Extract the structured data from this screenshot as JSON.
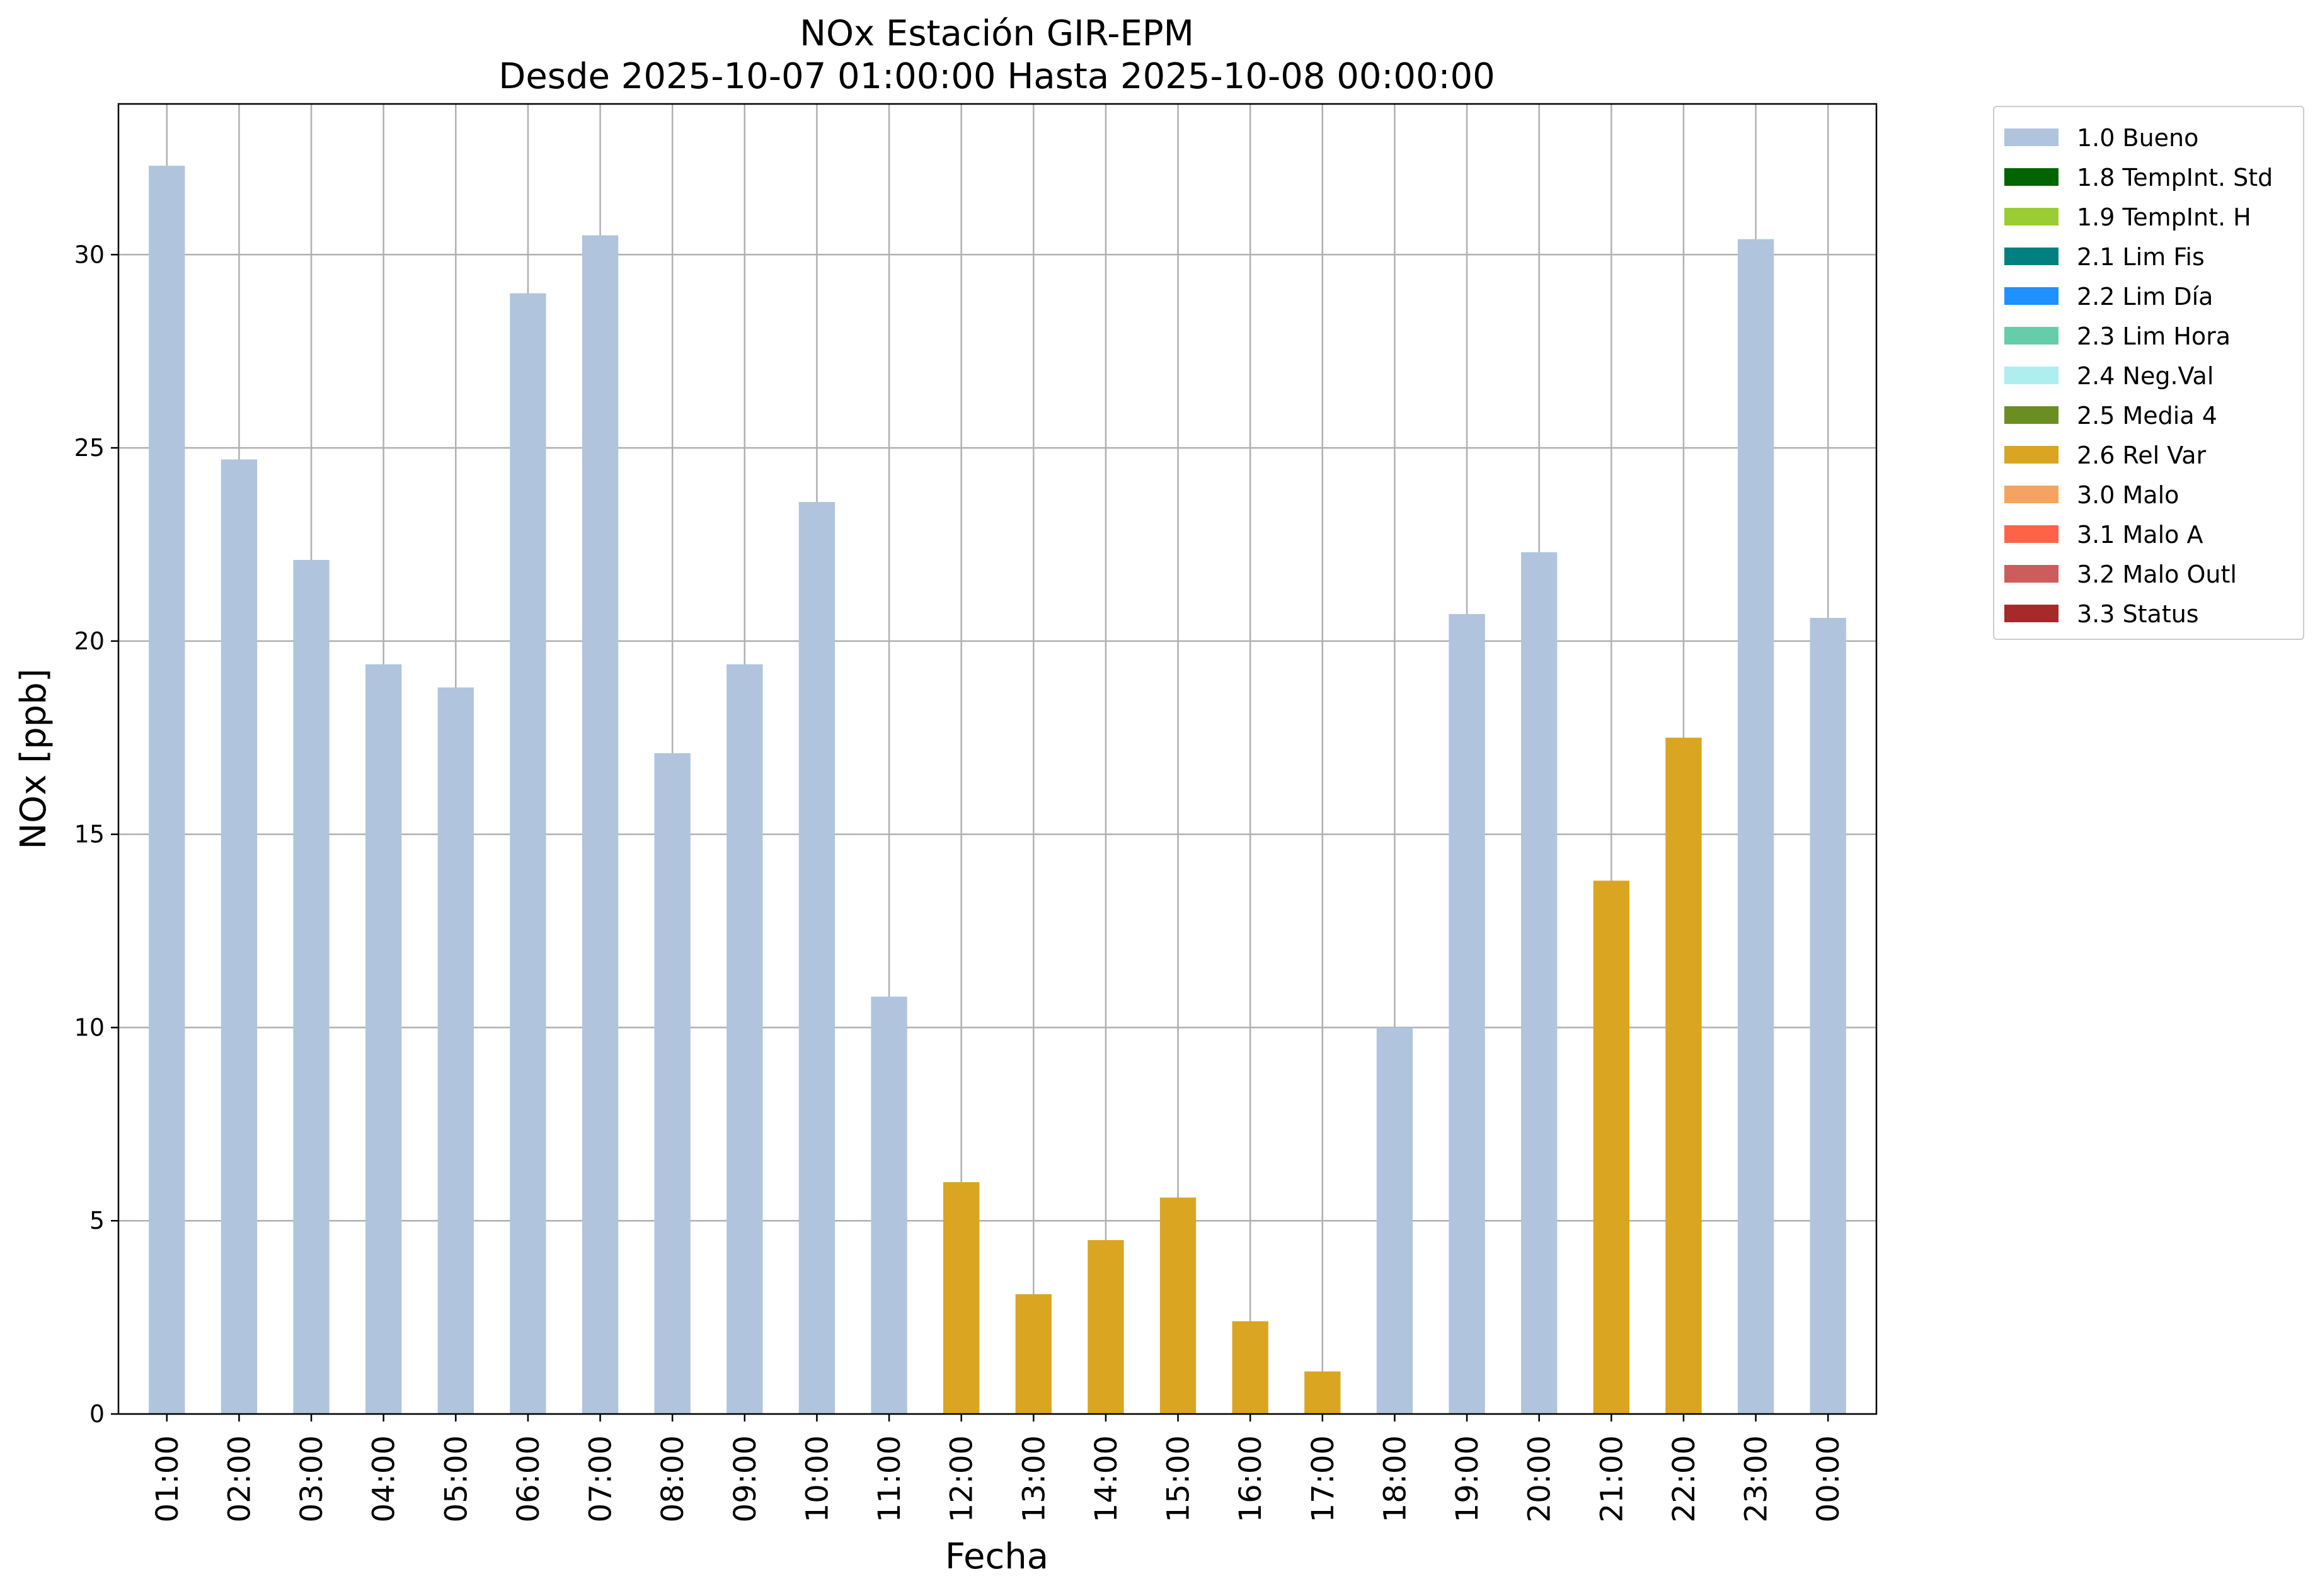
{
  "chart_data": {
    "type": "bar",
    "title": "NOx Estación GIR-EPM",
    "subtitle": "Desde 2025-10-07 01:00:00 Hasta 2025-10-08 00:00:00",
    "xlabel": "Fecha",
    "ylabel": "NOx [ppb]",
    "ylim": [
      0,
      33.9
    ],
    "yticks": [
      0,
      5,
      10,
      15,
      20,
      25,
      30
    ],
    "grid": true,
    "legend_position": "outside-top-right",
    "categories": [
      "01:00",
      "02:00",
      "03:00",
      "04:00",
      "05:00",
      "06:00",
      "07:00",
      "08:00",
      "09:00",
      "10:00",
      "11:00",
      "12:00",
      "13:00",
      "14:00",
      "15:00",
      "16:00",
      "17:00",
      "18:00",
      "19:00",
      "20:00",
      "21:00",
      "22:00",
      "23:00",
      "00:00"
    ],
    "values": [
      32.3,
      24.7,
      22.1,
      19.4,
      18.8,
      29.0,
      30.5,
      17.1,
      19.4,
      23.6,
      10.8,
      6.0,
      3.1,
      4.5,
      5.6,
      2.4,
      1.1,
      10.0,
      20.7,
      22.3,
      13.8,
      17.5,
      30.4,
      20.6
    ],
    "flags": [
      "1.0 Bueno",
      "1.0 Bueno",
      "1.0 Bueno",
      "1.0 Bueno",
      "1.0 Bueno",
      "1.0 Bueno",
      "1.0 Bueno",
      "1.0 Bueno",
      "1.0 Bueno",
      "1.0 Bueno",
      "1.0 Bueno",
      "2.6 Rel Var",
      "2.6 Rel Var",
      "2.6 Rel Var",
      "2.6 Rel Var",
      "2.6 Rel Var",
      "2.6 Rel Var",
      "1.0 Bueno",
      "1.0 Bueno",
      "1.0 Bueno",
      "2.6 Rel Var",
      "2.6 Rel Var",
      "1.0 Bueno",
      "1.0 Bueno"
    ],
    "legend": [
      {
        "label": "1.0 Bueno",
        "color": "#b0c4de"
      },
      {
        "label": "1.8 TempInt. Std",
        "color": "#006400"
      },
      {
        "label": "1.9 TempInt. H",
        "color": "#9acd32"
      },
      {
        "label": "2.1 Lim Fis",
        "color": "#008080"
      },
      {
        "label": "2.2 Lim Día",
        "color": "#1e90ff"
      },
      {
        "label": "2.3 Lim Hora",
        "color": "#66cdaa"
      },
      {
        "label": "2.4 Neg.Val",
        "color": "#afeeee"
      },
      {
        "label": "2.5 Media 4",
        "color": "#6b8e23"
      },
      {
        "label": "2.6 Rel Var",
        "color": "#daa520"
      },
      {
        "label": "3.0 Malo",
        "color": "#f4a460"
      },
      {
        "label": "3.1 Malo A",
        "color": "#ff6347"
      },
      {
        "label": "3.2 Malo Outl",
        "color": "#cd5c5c"
      },
      {
        "label": "3.3 Status",
        "color": "#a52a2a"
      }
    ]
  }
}
